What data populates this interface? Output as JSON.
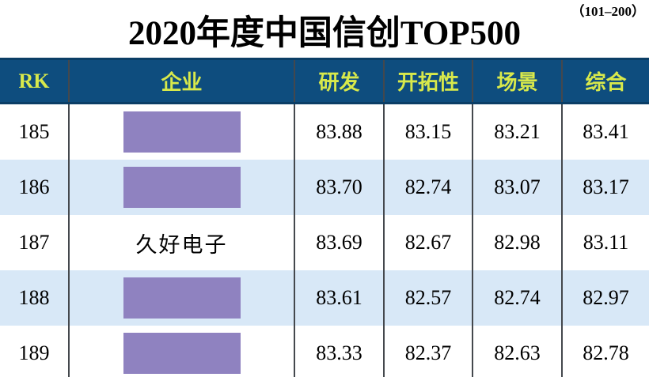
{
  "page": {
    "range_label": "（101–200）",
    "title": "2020年度中国信创TOP500"
  },
  "colors": {
    "header_background": "#0e4d7e",
    "header_text": "#d8e94b",
    "stripe_row_background": "#d8e8f7",
    "redaction_box": "#8f82c0",
    "grid_line": "#44484d",
    "body_text": "#000000"
  },
  "table": {
    "columns": [
      {
        "key": "rk",
        "label": "RK"
      },
      {
        "key": "company",
        "label": "企业"
      },
      {
        "key": "rd",
        "label": "研发"
      },
      {
        "key": "pioneering",
        "label": "开拓性"
      },
      {
        "key": "scene",
        "label": "场景"
      },
      {
        "key": "composite",
        "label": "综合"
      }
    ],
    "rows": [
      {
        "rk": "185",
        "company": "",
        "redacted": true,
        "rd": "83.88",
        "pioneering": "83.15",
        "scene": "83.21",
        "composite": "83.41"
      },
      {
        "rk": "186",
        "company": "",
        "redacted": true,
        "rd": "83.70",
        "pioneering": "82.74",
        "scene": "83.07",
        "composite": "83.17"
      },
      {
        "rk": "187",
        "company": "久好电子",
        "redacted": false,
        "rd": "83.69",
        "pioneering": "82.67",
        "scene": "82.98",
        "composite": "83.11"
      },
      {
        "rk": "188",
        "company": "",
        "redacted": true,
        "rd": "83.61",
        "pioneering": "82.57",
        "scene": "82.74",
        "composite": "82.97"
      },
      {
        "rk": "189",
        "company": "",
        "redacted": true,
        "rd": "83.33",
        "pioneering": "82.37",
        "scene": "82.63",
        "composite": "82.78"
      }
    ]
  },
  "chart_data": {
    "type": "table",
    "title": "2020年度中国信创TOP500",
    "subtitle": "（101–200）",
    "columns": [
      "RK",
      "企业",
      "研发",
      "开拓性",
      "场景",
      "综合"
    ],
    "rows": [
      [
        185,
        "",
        83.88,
        83.15,
        83.21,
        83.41
      ],
      [
        186,
        "",
        83.7,
        82.74,
        83.07,
        83.17
      ],
      [
        187,
        "久好电子",
        83.69,
        82.67,
        82.98,
        83.11
      ],
      [
        188,
        "",
        83.61,
        82.57,
        82.74,
        82.97
      ],
      [
        189,
        "",
        83.33,
        82.37,
        82.63,
        82.78
      ]
    ],
    "notes": "Company names in rows 185, 186, 188, 189 are covered by purple redaction boxes"
  }
}
